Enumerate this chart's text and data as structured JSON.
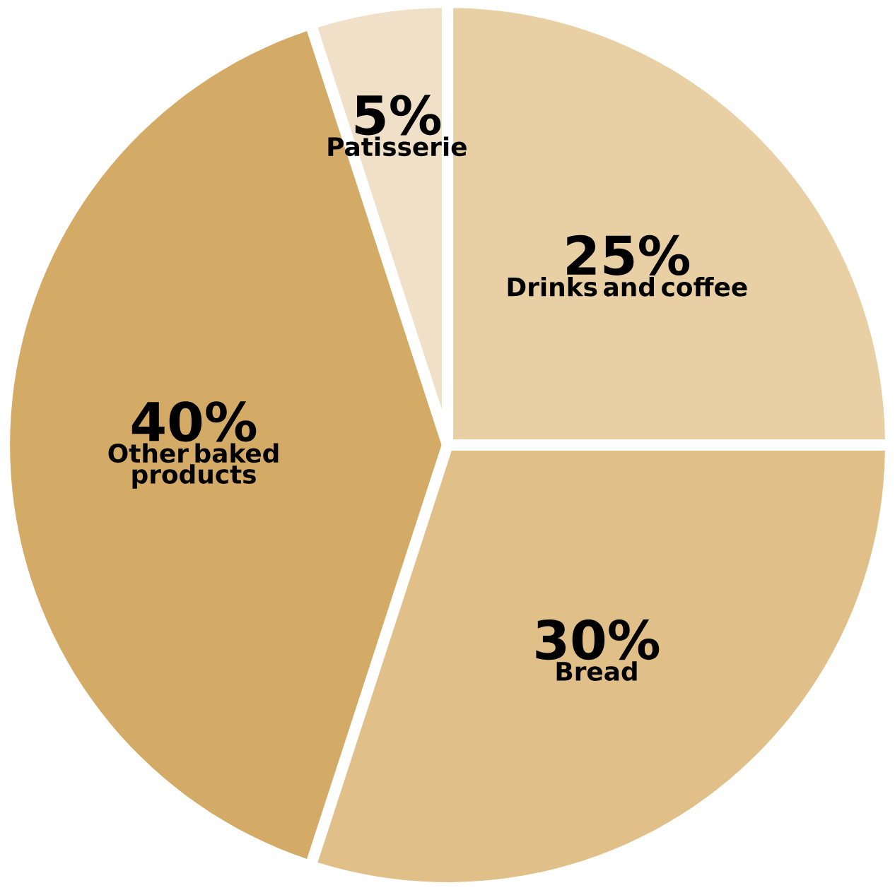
{
  "chart_data": {
    "type": "pie",
    "categories": [
      "Drinks and coffee",
      "Bread",
      "Other baked products",
      "Patisserie"
    ],
    "values": [
      25,
      30,
      40,
      5
    ],
    "value_labels": [
      "25%",
      "30%",
      "40%",
      "5%"
    ],
    "colors": [
      "#e8cfa4",
      "#e0bf88",
      "#d4ab66",
      "#f0e0c8"
    ]
  }
}
